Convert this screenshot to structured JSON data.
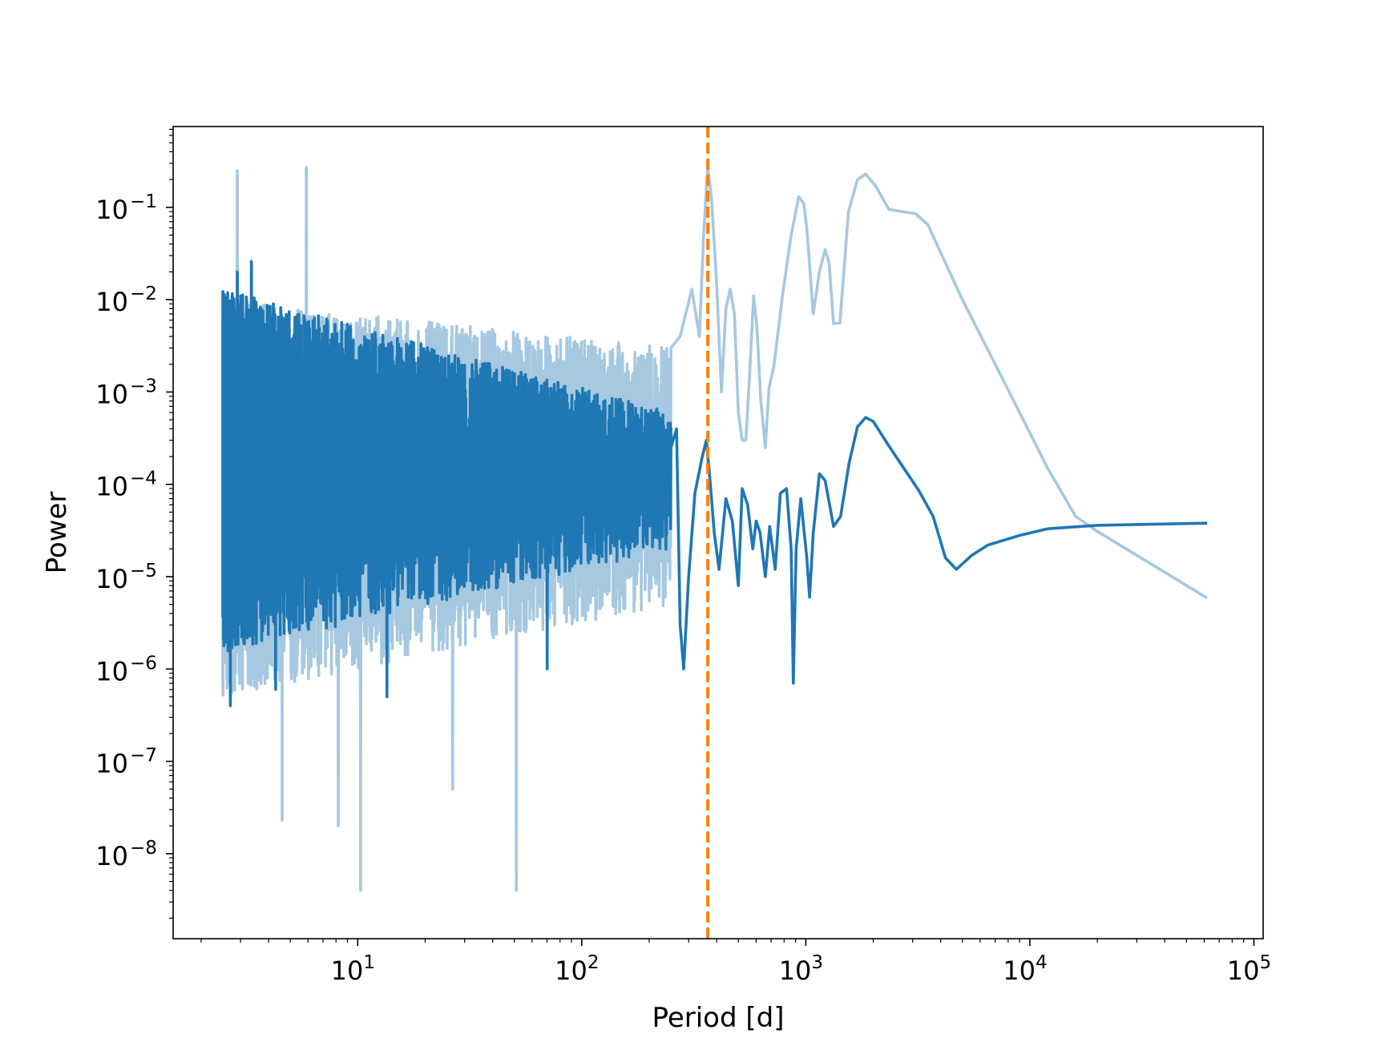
{
  "chart_data": {
    "type": "line",
    "xlabel": "Period [d]",
    "ylabel": "Power",
    "xscale": "log",
    "yscale": "log",
    "xlim": [
      1.5,
      110000
    ],
    "ylim": [
      1.2e-09,
      0.75
    ],
    "grid": false,
    "x_ticks": [
      {
        "value": 10,
        "base": "10",
        "exp": "1"
      },
      {
        "value": 100,
        "base": "10",
        "exp": "2"
      },
      {
        "value": 1000,
        "base": "10",
        "exp": "3"
      },
      {
        "value": 10000,
        "base": "10",
        "exp": "4"
      },
      {
        "value": 100000,
        "base": "10",
        "exp": "5"
      }
    ],
    "y_ticks": [
      {
        "value": 1e-08,
        "base": "10",
        "exp": "−8"
      },
      {
        "value": 1e-07,
        "base": "10",
        "exp": "−7"
      },
      {
        "value": 1e-06,
        "base": "10",
        "exp": "−6"
      },
      {
        "value": 1e-05,
        "base": "10",
        "exp": "−5"
      },
      {
        "value": 0.0001,
        "base": "10",
        "exp": "−4"
      },
      {
        "value": 0.001,
        "base": "10",
        "exp": "−3"
      },
      {
        "value": 0.01,
        "base": "10",
        "exp": "−2"
      },
      {
        "value": 0.1,
        "base": "10",
        "exp": "−1"
      }
    ],
    "reference_line": {
      "x": 365.25,
      "color": "#ff7f0e",
      "style": "dashed"
    },
    "series": [
      {
        "color": "#a6c8e0",
        "noise_region": {
          "x_range": [
            2.5,
            250
          ],
          "upper": [
            0.01,
            0.003
          ],
          "lower": [
            5e-07,
            5e-06
          ],
          "deep_dips": [
            [
              4.6,
              2.3e-08
            ],
            [
              8.2,
              2e-08
            ],
            [
              10.3,
              4e-09
            ],
            [
              26.5,
              5e-08
            ],
            [
              51,
              4e-09
            ]
          ],
          "spikes": [
            [
              2.9,
              0.25
            ],
            [
              5.9,
              0.27
            ]
          ]
        },
        "points": [
          [
            250,
            0.003
          ],
          [
            275,
            0.004
          ],
          [
            310,
            0.013
          ],
          [
            335,
            0.004
          ],
          [
            350,
            0.05
          ],
          [
            365,
            0.28
          ],
          [
            380,
            0.12
          ],
          [
            400,
            0.015
          ],
          [
            420,
            0.001
          ],
          [
            440,
            0.008
          ],
          [
            460,
            0.013
          ],
          [
            480,
            0.007
          ],
          [
            500,
            0.0006
          ],
          [
            520,
            0.0003
          ],
          [
            540,
            0.0003
          ],
          [
            560,
            0.0014
          ],
          [
            585,
            0.011
          ],
          [
            605,
            0.005
          ],
          [
            630,
            0.0008
          ],
          [
            660,
            0.00025
          ],
          [
            685,
            0.0011
          ],
          [
            720,
            0.0019
          ],
          [
            790,
            0.012
          ],
          [
            860,
            0.05
          ],
          [
            930,
            0.13
          ],
          [
            980,
            0.11
          ],
          [
            1010,
            0.06
          ],
          [
            1080,
            0.007
          ],
          [
            1150,
            0.02
          ],
          [
            1220,
            0.035
          ],
          [
            1270,
            0.025
          ],
          [
            1330,
            0.0055
          ],
          [
            1420,
            0.0056
          ],
          [
            1550,
            0.09
          ],
          [
            1700,
            0.2
          ],
          [
            1850,
            0.23
          ],
          [
            2050,
            0.17
          ],
          [
            2350,
            0.095
          ],
          [
            3100,
            0.085
          ],
          [
            3500,
            0.065
          ],
          [
            5000,
            0.01
          ],
          [
            7000,
            0.002
          ],
          [
            9000,
            0.0006
          ],
          [
            12000,
            0.00015
          ],
          [
            16000,
            4.5e-05
          ],
          [
            20000,
            3.1e-05
          ],
          [
            61000,
            6e-06
          ]
        ]
      },
      {
        "color": "#1f77b4",
        "noise_region": {
          "x_range": [
            2.5,
            250
          ],
          "upper": [
            0.013,
            0.0006
          ],
          "lower": [
            1.5e-06,
            2e-05
          ],
          "deep_dips": [
            [
              2.7,
              4e-07
            ],
            [
              4.3,
              6e-07
            ],
            [
              13.5,
              5e-07
            ],
            [
              70,
              1e-06
            ]
          ],
          "spikes": [
            [
              2.9,
              0.02
            ],
            [
              3.35,
              0.026
            ]
          ]
        },
        "points": [
          [
            250,
            0.00025
          ],
          [
            265,
            0.0004
          ],
          [
            275,
            3e-06
          ],
          [
            285,
            1e-06
          ],
          [
            300,
            1e-05
          ],
          [
            320,
            8e-05
          ],
          [
            345,
            0.0002
          ],
          [
            360,
            0.0003
          ],
          [
            375,
            0.0001
          ],
          [
            390,
            3e-05
          ],
          [
            410,
            1.2e-05
          ],
          [
            440,
            7e-05
          ],
          [
            470,
            4e-05
          ],
          [
            500,
            8e-06
          ],
          [
            520,
            9e-05
          ],
          [
            550,
            6e-05
          ],
          [
            580,
            2e-05
          ],
          [
            600,
            4e-05
          ],
          [
            625,
            3e-05
          ],
          [
            660,
            1e-05
          ],
          [
            690,
            3.5e-05
          ],
          [
            730,
            1.2e-05
          ],
          [
            770,
            8e-05
          ],
          [
            820,
            9e-05
          ],
          [
            860,
            2e-05
          ],
          [
            880,
            7e-07
          ],
          [
            905,
            2e-05
          ],
          [
            950,
            7e-05
          ],
          [
            1010,
            1.6e-05
          ],
          [
            1040,
            6e-06
          ],
          [
            1080,
            3e-05
          ],
          [
            1150,
            0.00013
          ],
          [
            1220,
            0.00011
          ],
          [
            1330,
            3.5e-05
          ],
          [
            1430,
            4.5e-05
          ],
          [
            1560,
            0.00017
          ],
          [
            1700,
            0.00042
          ],
          [
            1850,
            0.00053
          ],
          [
            2000,
            0.00048
          ],
          [
            2350,
            0.00026
          ],
          [
            3200,
            8.5e-05
          ],
          [
            3700,
            4.5e-05
          ],
          [
            4200,
            1.6e-05
          ],
          [
            4700,
            1.2e-05
          ],
          [
            5500,
            1.7e-05
          ],
          [
            6500,
            2.2e-05
          ],
          [
            9000,
            2.8e-05
          ],
          [
            12000,
            3.3e-05
          ],
          [
            20000,
            3.6e-05
          ],
          [
            61000,
            3.8e-05
          ]
        ]
      }
    ]
  }
}
